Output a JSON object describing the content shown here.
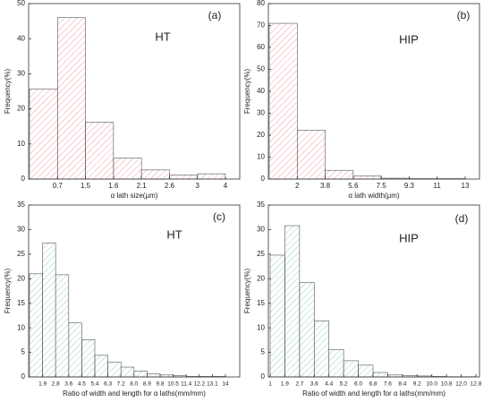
{
  "chart_data": [
    {
      "type": "histogram",
      "label": "(a)",
      "annotation": "HT",
      "xlabel": "α lath size(μm)",
      "ylabel": "Frequency(%)",
      "bins": [
        null,
        "0.7",
        "1.5",
        "1.6",
        "2.1",
        "2.6",
        "3",
        "4"
      ],
      "values": [
        25.7,
        46,
        16.2,
        6,
        2.6,
        1.2,
        1.5
      ],
      "color": "#e8888e",
      "ylim": [
        0,
        50
      ],
      "yticks": [
        0,
        10,
        20,
        30,
        40,
        50
      ]
    },
    {
      "type": "histogram",
      "label": "(b)",
      "annotation": "HIP",
      "xlabel": "α lath width(μm)",
      "ylabel": "Frequency(%)",
      "bins": [
        null,
        "2",
        "3.8",
        "5.6",
        "7.5",
        "9.3",
        "11",
        "13"
      ],
      "values": [
        71,
        22.3,
        4,
        1.5,
        0.4,
        0.2,
        0.2
      ],
      "color": "#e8888e",
      "ylim": [
        0,
        80
      ],
      "yticks": [
        0,
        10,
        20,
        30,
        40,
        50,
        60,
        70,
        80
      ]
    },
    {
      "type": "histogram",
      "label": "(c)",
      "annotation": "HT",
      "xlabel": "Ratio of width and length for α laths(mm/mm)",
      "ylabel": "Frequency(%)",
      "bins": [
        null,
        "1.9",
        "2.8",
        "3.6",
        "4.5",
        "5.4",
        "6.3",
        "7.2",
        "8.0",
        "8.9",
        "9.8",
        "10.5",
        "11.4",
        "12.2",
        "13.1",
        "14"
      ],
      "values": [
        21,
        27.3,
        20.8,
        11,
        7.6,
        4.4,
        3,
        2,
        1.2,
        0.6,
        0.4,
        0.3,
        0.1,
        0.1,
        0.1
      ],
      "color": "#7cc4c4",
      "ylim": [
        0,
        35
      ],
      "yticks": [
        0,
        5,
        10,
        15,
        20,
        25,
        30,
        35
      ]
    },
    {
      "type": "histogram",
      "label": "(d)",
      "annotation": "HIP",
      "xlabel": "Ratio of width and length for α laths(mm/mm)",
      "ylabel": "Frequency(%)",
      "bins": [
        "1",
        "1.9",
        "2.7",
        "3.6",
        "4.4",
        "5.2",
        "6.0",
        "6.8",
        "7.6",
        "8.4",
        "9.2",
        "10.0",
        "10.8",
        "12.0",
        "12.8"
      ],
      "values": [
        24.8,
        30.8,
        19.2,
        11.4,
        5.6,
        3.3,
        2.4,
        0.9,
        0.4,
        0.3,
        0.2,
        0.1,
        0.05,
        0.05
      ],
      "color": "#7cc4c4",
      "ylim": [
        0,
        35
      ],
      "yticks": [
        0,
        5,
        10,
        15,
        20,
        25,
        30,
        35
      ]
    }
  ]
}
